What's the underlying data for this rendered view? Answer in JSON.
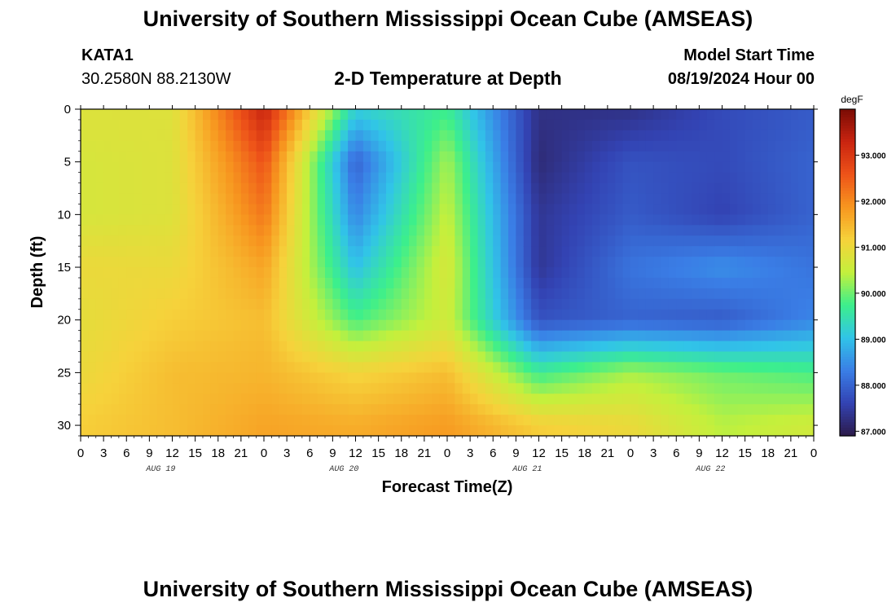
{
  "page": {
    "title_top": "University of Southern Mississippi Ocean Cube (AMSEAS)",
    "title_bottom": "University of Southern Mississippi Ocean Cube (AMSEAS)",
    "station_id": "KATA1",
    "station_coords": "30.2580N  88.2130W",
    "model_start_label": "Model Start Time",
    "model_start_value": "08/19/2024 Hour 00"
  },
  "chart_data": {
    "type": "heatmap",
    "title": "2-D Temperature at Depth",
    "xlabel": "Forecast Time(Z)",
    "ylabel": "Depth (ft)",
    "x_hours": [
      0,
      12,
      24,
      36,
      48,
      60,
      72,
      84,
      96
    ],
    "depths_ft": [
      0,
      5,
      10,
      15,
      20,
      25,
      30
    ],
    "values_degF": [
      [
        90.8,
        90.8,
        93.3,
        89.2,
        89.7,
        87.3,
        87.3,
        87.7,
        87.9
      ],
      [
        90.7,
        90.8,
        92.6,
        88.0,
        90.3,
        87.2,
        87.8,
        87.7,
        88.0
      ],
      [
        90.7,
        90.8,
        92.2,
        88.4,
        90.5,
        87.4,
        87.9,
        87.6,
        88.0
      ],
      [
        91.0,
        91.0,
        91.7,
        89.0,
        90.7,
        87.4,
        88.2,
        88.5,
        88.2
      ],
      [
        90.9,
        91.2,
        91.4,
        89.8,
        90.6,
        87.8,
        88.0,
        87.9,
        88.4
      ],
      [
        91.0,
        91.4,
        91.5,
        91.1,
        91.4,
        89.7,
        90.3,
        90.0,
        89.8
      ],
      [
        91.2,
        91.4,
        91.7,
        91.6,
        91.8,
        91.2,
        91.0,
        90.4,
        90.6
      ]
    ],
    "ylim": [
      0,
      31
    ],
    "xlim": [
      0,
      96
    ],
    "x_ticks": [
      "0",
      "3",
      "6",
      "9",
      "12",
      "15",
      "18",
      "21",
      "0",
      "3",
      "6",
      "9",
      "12",
      "15",
      "18",
      "21",
      "0",
      "3",
      "6",
      "9",
      "12",
      "15",
      "18",
      "21",
      "0",
      "3",
      "6",
      "9",
      "12",
      "15",
      "18",
      "21",
      "0"
    ],
    "y_ticks": [
      "0",
      "5",
      "10",
      "15",
      "20",
      "25",
      "30"
    ],
    "day_labels": [
      "AUG 19",
      "AUG 20",
      "AUG 21",
      "AUG 22"
    ],
    "colorbar": {
      "unit": "degF",
      "min": 86.9,
      "max": 94.0,
      "ticks": [
        "93.000",
        "92.000",
        "91.000",
        "90.000",
        "89.000",
        "88.000",
        "87.000"
      ],
      "tick_values": [
        93,
        92,
        91,
        90,
        89,
        88,
        87
      ],
      "colormap": [
        "#2c1a4a",
        "#3343b3",
        "#3a7ee6",
        "#31c4e8",
        "#3cef8c",
        "#c4f03c",
        "#f6d23b",
        "#f7961f",
        "#ee5319",
        "#c92410",
        "#7a0c05"
      ]
    }
  }
}
